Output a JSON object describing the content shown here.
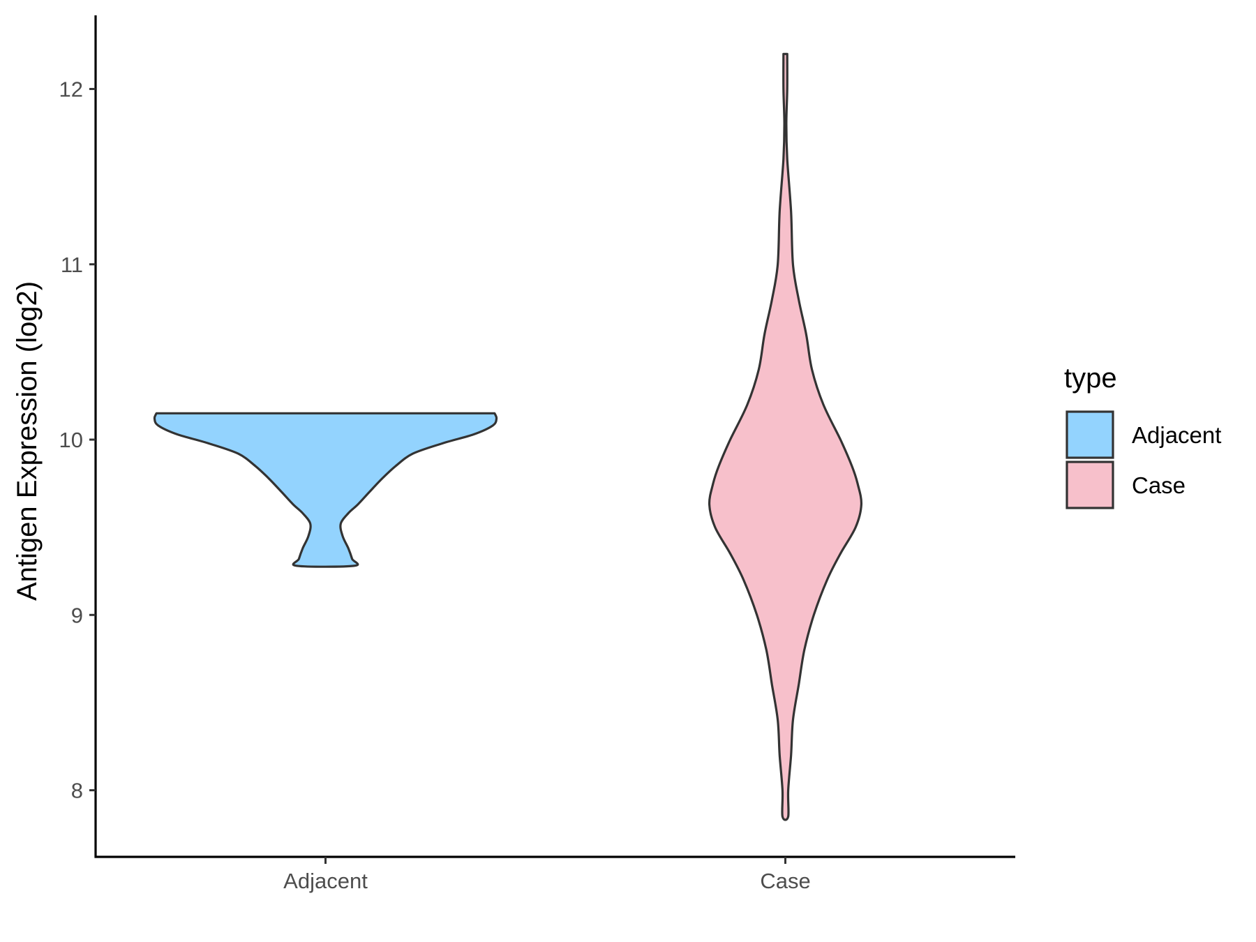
{
  "chart_data": {
    "type": "violin",
    "ylabel": "Antigen Expression (log2)",
    "xlabel": "",
    "categories": [
      "Adjacent",
      "Case"
    ],
    "y_ticks": [
      8,
      9,
      10,
      11,
      12
    ],
    "ylim": [
      7.62,
      12.42
    ],
    "legend": {
      "title": "type",
      "position": "right",
      "entries": [
        {
          "label": "Adjacent",
          "color": "#93D3FE"
        },
        {
          "label": "Case",
          "color": "#F7C0CB"
        }
      ]
    },
    "grid": false,
    "series": [
      {
        "category": "Adjacent",
        "color": "#93D3FE",
        "min": 9.28,
        "max": 10.15,
        "density_profile": [
          [
            10.15,
            0.89
          ],
          [
            10.12,
            0.9
          ],
          [
            10.08,
            0.88
          ],
          [
            10.03,
            0.78
          ],
          [
            9.98,
            0.62
          ],
          [
            9.92,
            0.46
          ],
          [
            9.85,
            0.37
          ],
          [
            9.78,
            0.3
          ],
          [
            9.7,
            0.23
          ],
          [
            9.63,
            0.17
          ],
          [
            9.58,
            0.12
          ],
          [
            9.52,
            0.08
          ],
          [
            9.45,
            0.09
          ],
          [
            9.38,
            0.12
          ],
          [
            9.32,
            0.14
          ],
          [
            9.28,
            0.15
          ]
        ]
      },
      {
        "category": "Case",
        "color": "#F7C0CB",
        "min": 7.85,
        "max": 12.2,
        "density_profile": [
          [
            12.2,
            0.01
          ],
          [
            12.0,
            0.01
          ],
          [
            11.8,
            0.005
          ],
          [
            11.6,
            0.01
          ],
          [
            11.3,
            0.03
          ],
          [
            11.0,
            0.04
          ],
          [
            10.8,
            0.07
          ],
          [
            10.6,
            0.11
          ],
          [
            10.4,
            0.14
          ],
          [
            10.2,
            0.2
          ],
          [
            10.0,
            0.29
          ],
          [
            9.85,
            0.35
          ],
          [
            9.75,
            0.38
          ],
          [
            9.63,
            0.4
          ],
          [
            9.5,
            0.37
          ],
          [
            9.35,
            0.29
          ],
          [
            9.2,
            0.22
          ],
          [
            9.0,
            0.15
          ],
          [
            8.8,
            0.1
          ],
          [
            8.6,
            0.07
          ],
          [
            8.4,
            0.04
          ],
          [
            8.2,
            0.03
          ],
          [
            8.0,
            0.015
          ],
          [
            7.85,
            0.015
          ]
        ]
      }
    ]
  }
}
